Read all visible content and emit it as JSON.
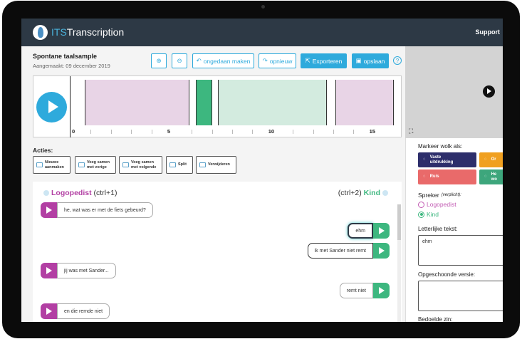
{
  "header": {
    "brand_prefix": "ITS",
    "brand_suffix": "Transcription",
    "support": "Support"
  },
  "doc": {
    "title": "Spontane taalsample",
    "created": "Aangemaakt: 09 december 2019"
  },
  "toolbar": {
    "zoom_in": "zoom-in-icon",
    "zoom_out": "zoom-out-icon",
    "undo": "ongedaan maken",
    "redo": "opnieuw",
    "export": "Exporteren",
    "save": "opslaan",
    "help": "?"
  },
  "timeline": {
    "ticks": [
      "0",
      "5",
      "10",
      "15"
    ],
    "segments": [
      {
        "speaker": "Logopedist",
        "start": 0.7,
        "end": 5.9,
        "color": "#e8d4e6"
      },
      {
        "speaker": "Kind",
        "start": 6.2,
        "end": 7.0,
        "color": "#3db77f"
      },
      {
        "speaker": "Kind",
        "start": 7.3,
        "end": 12.7,
        "color": "#d3ebdf"
      },
      {
        "speaker": "Logopedist",
        "start": 13.1,
        "end": 16,
        "color": "#e8d4e6"
      }
    ]
  },
  "actions": {
    "label": "Acties:",
    "items": [
      {
        "l1": "Nieuwe",
        "l2": "aanmaken"
      },
      {
        "l1": "Voeg samen",
        "l2": "met vorige"
      },
      {
        "l1": "Voeg samen",
        "l2": "met volgende"
      },
      {
        "l1": "Split",
        "l2": ""
      },
      {
        "l1": "Verwijderen",
        "l2": ""
      }
    ]
  },
  "chat": {
    "left_speaker": "Logopedist",
    "left_key": "(ctrl+1)",
    "right_key": "(ctrl+2)",
    "right_speaker": "Kind",
    "messages": [
      {
        "side": "l",
        "text": "he, wat was er met de fiets gebeurd?"
      },
      {
        "side": "r",
        "text": "ehm"
      },
      {
        "side": "r",
        "text": "ik met Sander niet remt"
      },
      {
        "side": "l",
        "text": "jij was met Sander..."
      },
      {
        "side": "r",
        "text": "remt niet"
      },
      {
        "side": "l",
        "text": "en die remde niet"
      }
    ]
  },
  "side": {
    "mark_label": "Markeer wolk als:",
    "marks": [
      {
        "l1": "Vaste",
        "l2": "uitdrukking",
        "color": "#2d2e6b"
      },
      {
        "l1": "Or",
        "l2": "",
        "color": "#f0a020"
      },
      {
        "l1": "Ruis",
        "l2": "",
        "color": "#e96a6a"
      },
      {
        "l1": "He",
        "l2": "wo",
        "color": "#3da67c"
      }
    ],
    "speaker_label": "Spreker",
    "speaker_note": "(verplicht):",
    "opt1": "Logopedist",
    "opt2": "Kind",
    "selected": "Kind",
    "literal_label": "Letterlijke tekst:",
    "literal_value": "ehm",
    "clean_label": "Opgeschoonde versie:",
    "clean_value": "",
    "meant_label": "Bedoelde zin:"
  },
  "colors": {
    "accent": "#2eaadc",
    "logopedist": "#b23fa3",
    "kind": "#3db77f",
    "header": "#2d3945"
  }
}
